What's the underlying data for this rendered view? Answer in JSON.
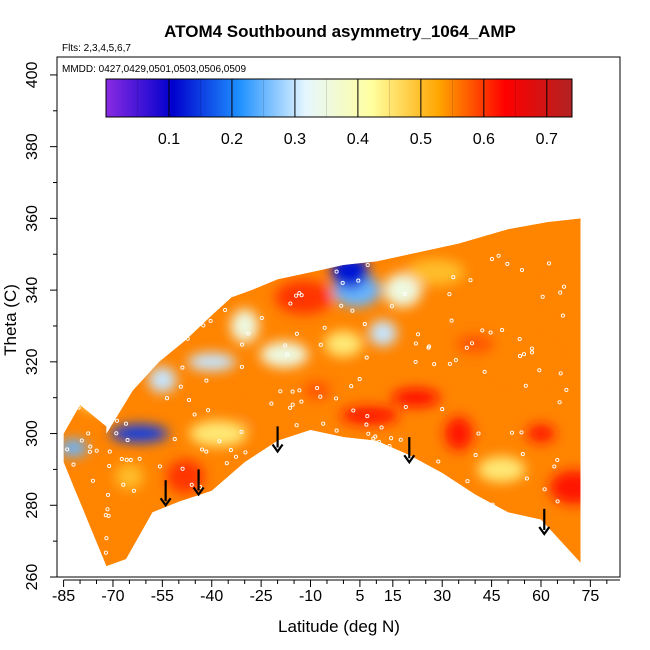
{
  "chart_data": {
    "type": "heatmap",
    "title": "ATOM4 Southbound asymmetry_1064_AMP",
    "flights_note": "Flts: 2,3,4,5,6,7",
    "dates_note": "MMDD: 0427,0429,0501,0503,0506,0509",
    "xlabel": "Latitude (deg N)",
    "ylabel": "Theta (C)",
    "xlim": [
      -87,
      84
    ],
    "ylim": [
      260,
      405
    ],
    "x_ticks": [
      -85,
      -70,
      -55,
      -40,
      -25,
      -10,
      5,
      15,
      30,
      45,
      60,
      75
    ],
    "y_ticks": [
      260,
      280,
      300,
      320,
      340,
      360,
      380,
      400
    ],
    "colorbar": {
      "range": [
        0.0,
        0.74
      ],
      "ticks": [
        0.1,
        0.2,
        0.3,
        0.4,
        0.5,
        0.6,
        0.7
      ],
      "colors": [
        "#8a2be2",
        "#0000cd",
        "#1e90ff",
        "#e6f6ff",
        "#ffff9e",
        "#ffa500",
        "#ff0000",
        "#b22222"
      ]
    },
    "domain_top": [
      [
        -72,
        300
      ],
      [
        -64,
        312
      ],
      [
        -56,
        320
      ],
      [
        -48,
        326
      ],
      [
        -40,
        333
      ],
      [
        -34,
        338
      ],
      [
        -28,
        340
      ],
      [
        -20,
        343
      ],
      [
        -10,
        345
      ],
      [
        0,
        347
      ],
      [
        10,
        348
      ],
      [
        20,
        350
      ],
      [
        35,
        353
      ],
      [
        50,
        357
      ],
      [
        62,
        359
      ],
      [
        72,
        360
      ]
    ],
    "domain_bottom": [
      [
        -72,
        263
      ],
      [
        -66,
        265
      ],
      [
        -58,
        278
      ],
      [
        -50,
        281
      ],
      [
        -40,
        284
      ],
      [
        -30,
        292
      ],
      [
        -20,
        298
      ],
      [
        -10,
        301
      ],
      [
        0,
        299
      ],
      [
        10,
        298
      ],
      [
        20,
        294
      ],
      [
        30,
        289
      ],
      [
        40,
        283
      ],
      [
        50,
        278
      ],
      [
        60,
        276
      ],
      [
        66,
        270
      ],
      [
        72,
        264
      ]
    ],
    "domain_left": [
      [
        -85,
        292
      ],
      [
        -85,
        300
      ],
      [
        -80,
        308
      ],
      [
        -72,
        302
      ]
    ],
    "field": [
      {
        "lat": -82,
        "theta": 296,
        "value": 0.25
      },
      {
        "lat": -75,
        "theta": 310,
        "value": 0.45
      },
      {
        "lat": -70,
        "theta": 275,
        "value": 0.55
      },
      {
        "lat": -62,
        "theta": 300,
        "value": 0.15
      },
      {
        "lat": -55,
        "theta": 315,
        "value": 0.3
      },
      {
        "lat": -48,
        "theta": 288,
        "value": 0.6
      },
      {
        "lat": -40,
        "theta": 320,
        "value": 0.3
      },
      {
        "lat": -38,
        "theta": 300,
        "value": 0.45
      },
      {
        "lat": -30,
        "theta": 330,
        "value": 0.35
      },
      {
        "lat": -25,
        "theta": 305,
        "value": 0.55
      },
      {
        "lat": -18,
        "theta": 322,
        "value": 0.35
      },
      {
        "lat": -12,
        "theta": 338,
        "value": 0.6
      },
      {
        "lat": -8,
        "theta": 312,
        "value": 0.58
      },
      {
        "lat": 0,
        "theta": 325,
        "value": 0.45
      },
      {
        "lat": 4,
        "theta": 340,
        "value": 0.25
      },
      {
        "lat": 8,
        "theta": 305,
        "value": 0.62
      },
      {
        "lat": 12,
        "theta": 328,
        "value": 0.3
      },
      {
        "lat": 18,
        "theta": 340,
        "value": 0.35
      },
      {
        "lat": 22,
        "theta": 310,
        "value": 0.63
      },
      {
        "lat": 28,
        "theta": 345,
        "value": 0.5
      },
      {
        "lat": 35,
        "theta": 300,
        "value": 0.62
      },
      {
        "lat": 40,
        "theta": 325,
        "value": 0.58
      },
      {
        "lat": 48,
        "theta": 290,
        "value": 0.45
      },
      {
        "lat": 55,
        "theta": 320,
        "value": 0.55
      },
      {
        "lat": 60,
        "theta": 300,
        "value": 0.62
      },
      {
        "lat": 68,
        "theta": 340,
        "value": 0.55
      },
      {
        "lat": 70,
        "theta": 285,
        "value": 0.62
      },
      {
        "lat": -80,
        "theta": 285,
        "value": 0.55
      },
      {
        "lat": -65,
        "theta": 288,
        "value": 0.5
      },
      {
        "lat": 2,
        "theta": 345,
        "value": 0.12
      }
    ],
    "arrows": [
      {
        "lat": -54,
        "theta_from": 287,
        "theta_to": 280
      },
      {
        "lat": -44,
        "theta_from": 290,
        "theta_to": 283
      },
      {
        "lat": -20,
        "theta_from": 302,
        "theta_to": 295
      },
      {
        "lat": 20,
        "theta_from": 299,
        "theta_to": 292
      },
      {
        "lat": 61,
        "theta_from": 279,
        "theta_to": 272
      }
    ]
  }
}
